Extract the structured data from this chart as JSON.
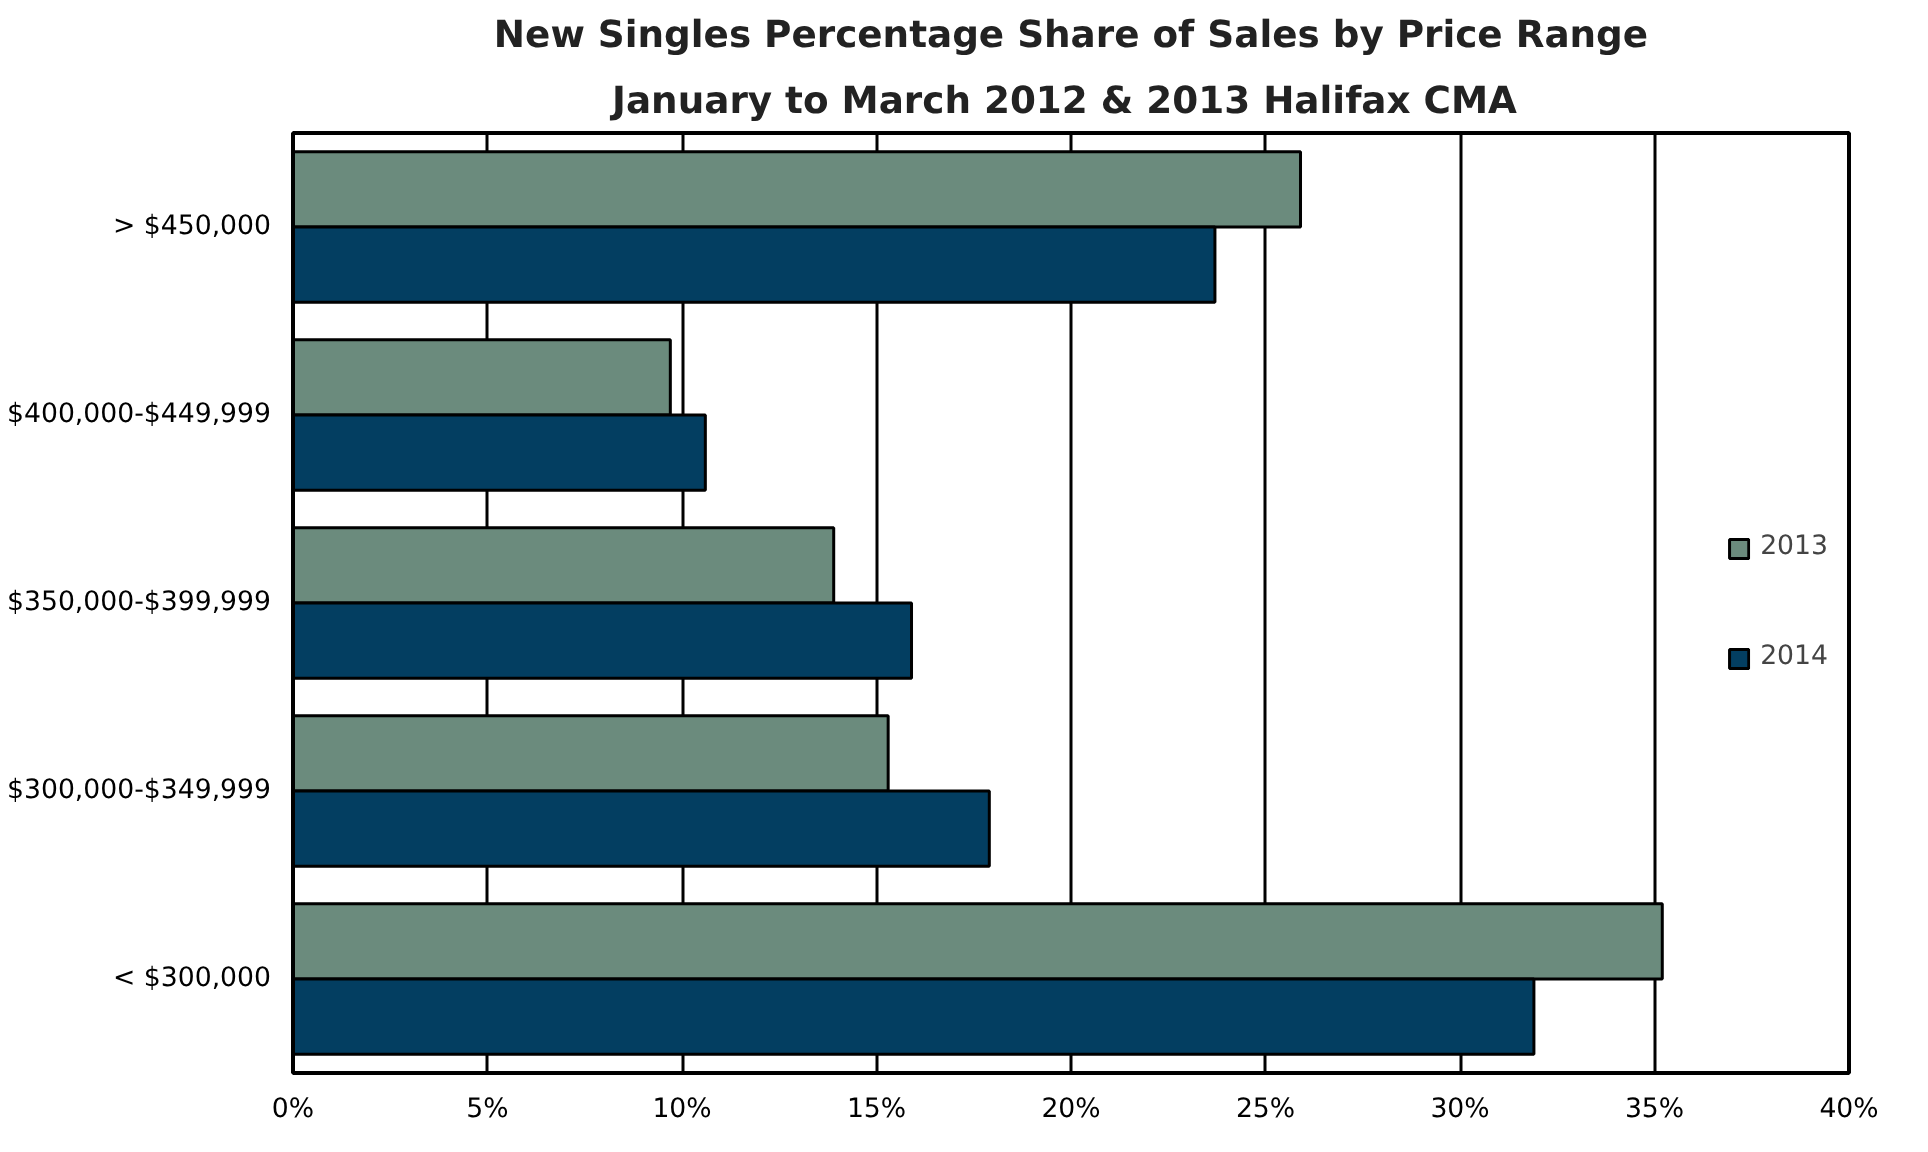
{
  "chart_data": {
    "type": "bar",
    "orientation": "horizontal",
    "title": "New Singles Percentage Share of Sales by Price Range",
    "subtitle": "January to March 2012 & 2013  Halifax CMA",
    "categories": [
      "> $450,000",
      "$400,000-$449,999",
      "$350,000-$399,999",
      "$300,000-$349,999",
      "< $300,000"
    ],
    "series": [
      {
        "name": "2013",
        "color": "#6b8b7d",
        "values": [
          25.9,
          9.7,
          13.9,
          15.3,
          35.2
        ]
      },
      {
        "name": "2014",
        "color": "#033e61",
        "values": [
          23.7,
          10.6,
          15.9,
          17.9,
          31.9
        ]
      }
    ],
    "xlim": [
      0,
      40
    ],
    "xticks": [
      {
        "value": 0,
        "label": "0%"
      },
      {
        "value": 5,
        "label": "5%"
      },
      {
        "value": 10,
        "label": "10%"
      },
      {
        "value": 15,
        "label": "15%"
      },
      {
        "value": 20,
        "label": "20%"
      },
      {
        "value": 25,
        "label": "25%"
      },
      {
        "value": 30,
        "label": "30%"
      },
      {
        "value": 35,
        "label": "35%"
      },
      {
        "value": 40,
        "label": "40%"
      }
    ],
    "grid": "x",
    "legend": "right"
  }
}
